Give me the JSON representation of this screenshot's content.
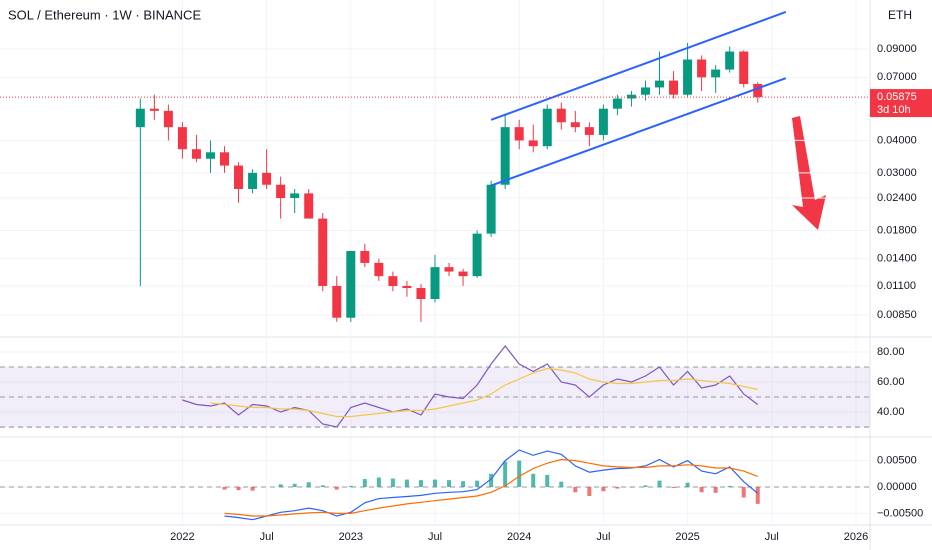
{
  "chart_data": [
    {
      "type": "candlestick",
      "title": "SOL / Ethereum · 1W · BINANCE",
      "currency": "ETH",
      "x": [
        "2021-10",
        "2021-11",
        "2021-12",
        "2022-01",
        "2022-02",
        "2022-03",
        "2022-04",
        "2022-05",
        "2022-06",
        "2022-07",
        "2022-08",
        "2022-09",
        "2022-10",
        "2022-11",
        "2022-12",
        "2023-01",
        "2023-02",
        "2023-03",
        "2023-04",
        "2023-05",
        "2023-06",
        "2023-07",
        "2023-08",
        "2023-09",
        "2023-10",
        "2023-11",
        "2023-12",
        "2024-01",
        "2024-02",
        "2024-03",
        "2024-04",
        "2024-05",
        "2024-06",
        "2024-07",
        "2024-08",
        "2024-09",
        "2024-10",
        "2024-11",
        "2024-12",
        "2025-01",
        "2025-02",
        "2025-03",
        "2025-04",
        "2025-05",
        "2025-06"
      ],
      "open": [
        0.045,
        0.053,
        0.052,
        0.045,
        0.037,
        0.034,
        0.036,
        0.032,
        0.026,
        0.03,
        0.027,
        0.024,
        0.025,
        0.02,
        0.011,
        0.0083,
        0.015,
        0.0135,
        0.012,
        0.011,
        0.0108,
        0.0098,
        0.013,
        0.0125,
        0.012,
        0.0175,
        0.027,
        0.045,
        0.04,
        0.038,
        0.053,
        0.047,
        0.045,
        0.042,
        0.053,
        0.058,
        0.06,
        0.064,
        0.068,
        0.06,
        0.082,
        0.07,
        0.075,
        0.088,
        0.066
      ],
      "high": [
        0.058,
        0.06,
        0.055,
        0.047,
        0.042,
        0.04,
        0.038,
        0.033,
        0.031,
        0.037,
        0.029,
        0.026,
        0.026,
        0.021,
        0.012,
        0.015,
        0.016,
        0.014,
        0.0125,
        0.0115,
        0.0112,
        0.0145,
        0.0135,
        0.0128,
        0.018,
        0.028,
        0.05,
        0.048,
        0.046,
        0.055,
        0.056,
        0.052,
        0.047,
        0.055,
        0.06,
        0.062,
        0.068,
        0.088,
        0.074,
        0.095,
        0.085,
        0.078,
        0.092,
        0.089,
        0.067
      ],
      "low": [
        0.011,
        0.048,
        0.04,
        0.034,
        0.033,
        0.03,
        0.03,
        0.023,
        0.025,
        0.026,
        0.02,
        0.021,
        0.02,
        0.0105,
        0.008,
        0.008,
        0.013,
        0.0115,
        0.0105,
        0.01,
        0.008,
        0.0095,
        0.012,
        0.011,
        0.0118,
        0.017,
        0.026,
        0.037,
        0.036,
        0.037,
        0.044,
        0.043,
        0.038,
        0.04,
        0.05,
        0.054,
        0.057,
        0.06,
        0.058,
        0.059,
        0.062,
        0.061,
        0.073,
        0.064,
        0.056
      ],
      "close": [
        0.053,
        0.052,
        0.045,
        0.037,
        0.034,
        0.036,
        0.032,
        0.026,
        0.03,
        0.027,
        0.024,
        0.025,
        0.02,
        0.011,
        0.0083,
        0.015,
        0.0135,
        0.012,
        0.011,
        0.0108,
        0.0098,
        0.013,
        0.0125,
        0.012,
        0.0175,
        0.027,
        0.045,
        0.04,
        0.038,
        0.053,
        0.047,
        0.045,
        0.042,
        0.053,
        0.058,
        0.06,
        0.064,
        0.068,
        0.06,
        0.082,
        0.07,
        0.075,
        0.088,
        0.066,
        0.05875
      ],
      "up_color": "#089981",
      "down_color": "#f23645",
      "log_scale": true,
      "ylim": [
        0.00712,
        0.139
      ],
      "yticks": [
        {
          "value": 0.09,
          "label": "0.09000"
        },
        {
          "value": 0.07,
          "label": "0.07000"
        },
        {
          "value": 0.04,
          "label": "0.04000"
        },
        {
          "value": 0.03,
          "label": "0.03000"
        },
        {
          "value": 0.024,
          "label": "0.02400"
        },
        {
          "value": 0.018,
          "label": "0.01800"
        },
        {
          "value": 0.014,
          "label": "0.01400"
        },
        {
          "value": 0.011,
          "label": "0.01100"
        },
        {
          "value": 0.0085,
          "label": "0.00850"
        }
      ],
      "xlim": [
        "2020-12",
        "2026-02"
      ],
      "xticks": [
        {
          "value": "2022-01",
          "label": "2022"
        },
        {
          "value": "2022-07",
          "label": "Jul"
        },
        {
          "value": "2023-01",
          "label": "2023"
        },
        {
          "value": "2023-07",
          "label": "Jul"
        },
        {
          "value": "2024-01",
          "label": "2024"
        },
        {
          "value": "2024-07",
          "label": "Jul"
        },
        {
          "value": "2025-01",
          "label": "2025"
        },
        {
          "value": "2025-07",
          "label": "Jul"
        },
        {
          "value": "2026-01",
          "label": "2026"
        }
      ],
      "last_price": {
        "value": 0.05875,
        "label": "0.05875",
        "countdown": "3d 10h",
        "color": "#f23645"
      },
      "channel": {
        "color": "#2962ff",
        "lines": [
          {
            "x": [
              "2023-11",
              "2025-08"
            ],
            "values": [
              0.048,
              0.125
            ]
          },
          {
            "x": [
              "2023-11",
              "2025-08"
            ],
            "values": [
              0.0268,
              0.0695
            ]
          }
        ]
      }
    },
    {
      "type": "line",
      "x": [
        "2022-01",
        "2022-02",
        "2022-03",
        "2022-04",
        "2022-05",
        "2022-06",
        "2022-07",
        "2022-08",
        "2022-09",
        "2022-10",
        "2022-11",
        "2022-12",
        "2023-01",
        "2023-02",
        "2023-03",
        "2023-04",
        "2023-05",
        "2023-06",
        "2023-07",
        "2023-08",
        "2023-09",
        "2023-10",
        "2023-11",
        "2023-12",
        "2024-01",
        "2024-02",
        "2024-03",
        "2024-04",
        "2024-05",
        "2024-06",
        "2024-07",
        "2024-08",
        "2024-09",
        "2024-10",
        "2024-11",
        "2024-12",
        "2025-01",
        "2025-02",
        "2025-03",
        "2025-04",
        "2025-05",
        "2025-06"
      ],
      "series": [
        {
          "color": "#7e57c2",
          "values": [
            48,
            45,
            44,
            46,
            38,
            45,
            44,
            40,
            43,
            41,
            32,
            30,
            43,
            46,
            43,
            40,
            42,
            38,
            52,
            50,
            49,
            58,
            72,
            84,
            72,
            67,
            72,
            60,
            58,
            50,
            58,
            62,
            60,
            64,
            70,
            58,
            67,
            56,
            58,
            64,
            52,
            45
          ]
        },
        {
          "color": "#f7c548",
          "values": [
            null,
            null,
            46,
            45,
            44,
            43,
            43,
            42,
            42,
            41,
            39,
            37,
            37,
            38,
            39,
            40,
            41,
            41,
            42,
            44,
            46,
            48,
            52,
            58,
            62,
            66,
            69,
            68,
            66,
            62,
            60,
            59,
            59,
            60,
            61,
            61,
            62,
            61,
            60,
            59,
            57,
            55
          ]
        }
      ],
      "levels": [
        70,
        50,
        30
      ],
      "band_color": "#7e57c2",
      "ylim": [
        24.7,
        88
      ],
      "yticks": [
        {
          "value": 80,
          "label": "80.00"
        },
        {
          "value": 60,
          "label": "60.00"
        },
        {
          "value": 40,
          "label": "40.00"
        }
      ]
    },
    {
      "type": "line",
      "x": [
        "2022-04",
        "2022-05",
        "2022-06",
        "2022-07",
        "2022-08",
        "2022-09",
        "2022-10",
        "2022-11",
        "2022-12",
        "2023-01",
        "2023-02",
        "2023-03",
        "2023-04",
        "2023-05",
        "2023-06",
        "2023-07",
        "2023-08",
        "2023-09",
        "2023-10",
        "2023-11",
        "2023-12",
        "2024-01",
        "2024-02",
        "2024-03",
        "2024-04",
        "2024-05",
        "2024-06",
        "2024-07",
        "2024-08",
        "2024-09",
        "2024-10",
        "2024-11",
        "2024-12",
        "2025-01",
        "2025-02",
        "2025-03",
        "2025-04",
        "2025-05",
        "2025-06"
      ],
      "series": [
        {
          "color": "#2962ff",
          "values": [
            -0.0055,
            -0.0058,
            -0.0062,
            -0.0055,
            -0.0048,
            -0.0045,
            -0.004,
            -0.0045,
            -0.0055,
            -0.0048,
            -0.003,
            -0.0022,
            -0.002,
            -0.0018,
            -0.0016,
            -0.0012,
            -0.001,
            -0.0009,
            -0.0005,
            0.0015,
            0.005,
            0.007,
            0.006,
            0.0068,
            0.0062,
            0.004,
            0.0028,
            0.0032,
            0.0035,
            0.0036,
            0.004,
            0.0052,
            0.0038,
            0.005,
            0.003,
            0.0025,
            0.0038,
            0.001,
            -0.0012
          ]
        },
        {
          "color": "#ff6d00",
          "values": [
            -0.005,
            -0.0052,
            -0.0055,
            -0.0055,
            -0.0053,
            -0.0051,
            -0.0049,
            -0.0048,
            -0.005,
            -0.005,
            -0.0045,
            -0.004,
            -0.0036,
            -0.0032,
            -0.0029,
            -0.0026,
            -0.0023,
            -0.002,
            -0.0017,
            -0.001,
            0.0002,
            0.002,
            0.0035,
            0.0045,
            0.0052,
            0.005,
            0.0045,
            0.004,
            0.0038,
            0.0037,
            0.0037,
            0.004,
            0.004,
            0.0042,
            0.004,
            0.0036,
            0.0036,
            0.003,
            0.002
          ]
        }
      ],
      "histogram": {
        "up_color": "#26a69a",
        "down_color": "#ef5350",
        "values": [
          -0.0005,
          -0.0006,
          -0.0007,
          0,
          0.0005,
          0.0006,
          0.0009,
          0.0003,
          -0.0005,
          0.0002,
          0.0015,
          0.0018,
          0.0016,
          0.0014,
          0.0013,
          0.0014,
          0.0013,
          0.0011,
          0.0012,
          0.0025,
          0.0048,
          0.005,
          0.0025,
          0.0023,
          0.001,
          -0.001,
          -0.0017,
          -0.0008,
          -0.0003,
          -0.0001,
          0.0003,
          0.0012,
          -0.0002,
          0.0008,
          -0.001,
          -0.0011,
          0.0002,
          -0.002,
          -0.0032
        ]
      },
      "levels": [
        0
      ],
      "ylim": [
        -0.0072,
        0.0089
      ],
      "yticks": [
        {
          "value": 0.005,
          "label": "0.00500"
        },
        {
          "value": 0,
          "label": "0.00000"
        },
        {
          "value": -0.005,
          "label": "−0.00500"
        }
      ]
    }
  ]
}
